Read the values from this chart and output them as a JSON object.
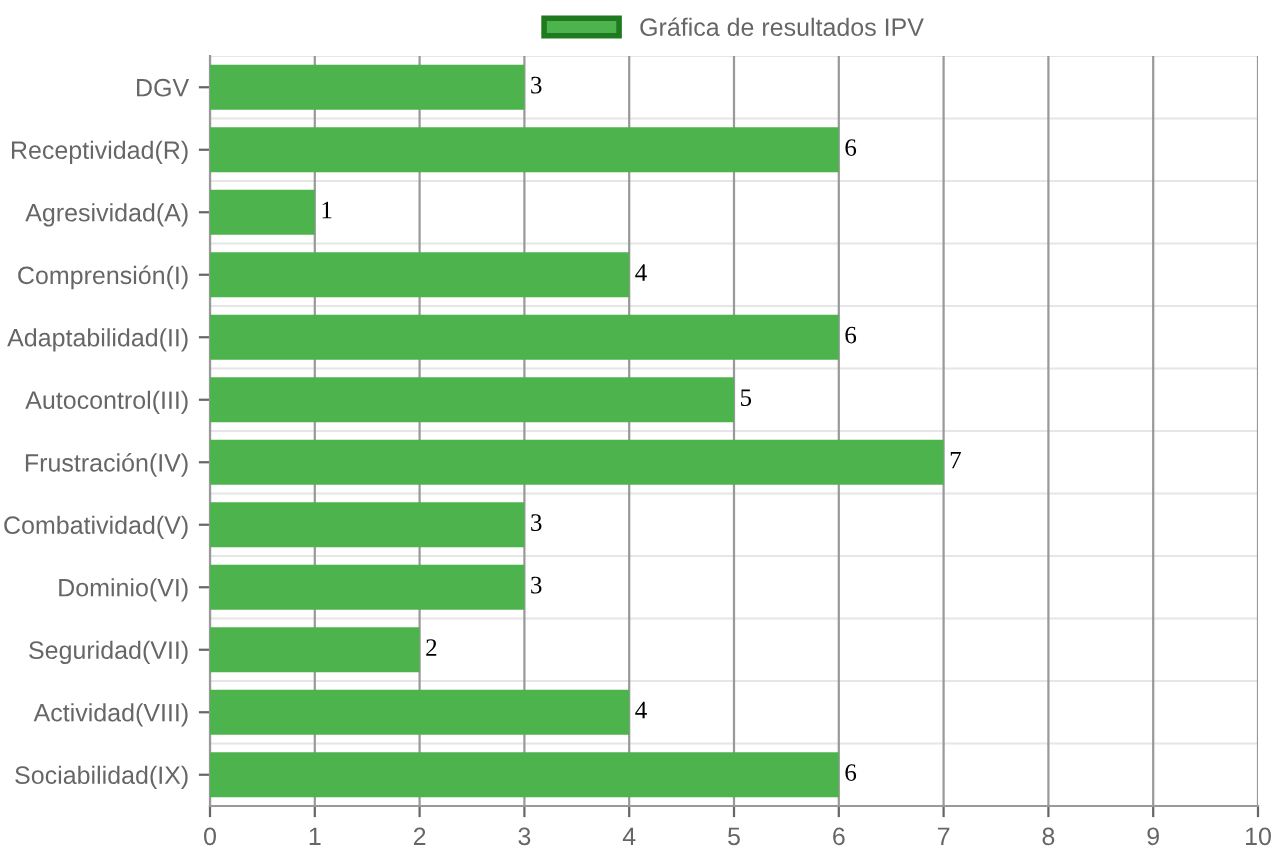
{
  "chart_data": {
    "type": "bar",
    "orientation": "horizontal",
    "categories": [
      "DGV",
      "Receptividad(R)",
      "Agresividad(A)",
      "Comprensión(I)",
      "Adaptabilidad(II)",
      "Autocontrol(III)",
      "Frustración(IV)",
      "Combatividad(V)",
      "Dominio(VI)",
      "Seguridad(VII)",
      "Actividad(VIII)",
      "Sociabilidad(IX)"
    ],
    "series": [
      {
        "name": "Gráfica de resultados IPV",
        "color": "#4db34d",
        "values": [
          3,
          6,
          1,
          4,
          6,
          5,
          7,
          3,
          3,
          2,
          4,
          6
        ]
      }
    ],
    "xlim": [
      0,
      10
    ],
    "xticks": [
      0,
      1,
      2,
      3,
      4,
      5,
      6,
      7,
      8,
      9,
      10
    ],
    "grid": true,
    "legend": "top",
    "data_labels": true
  }
}
